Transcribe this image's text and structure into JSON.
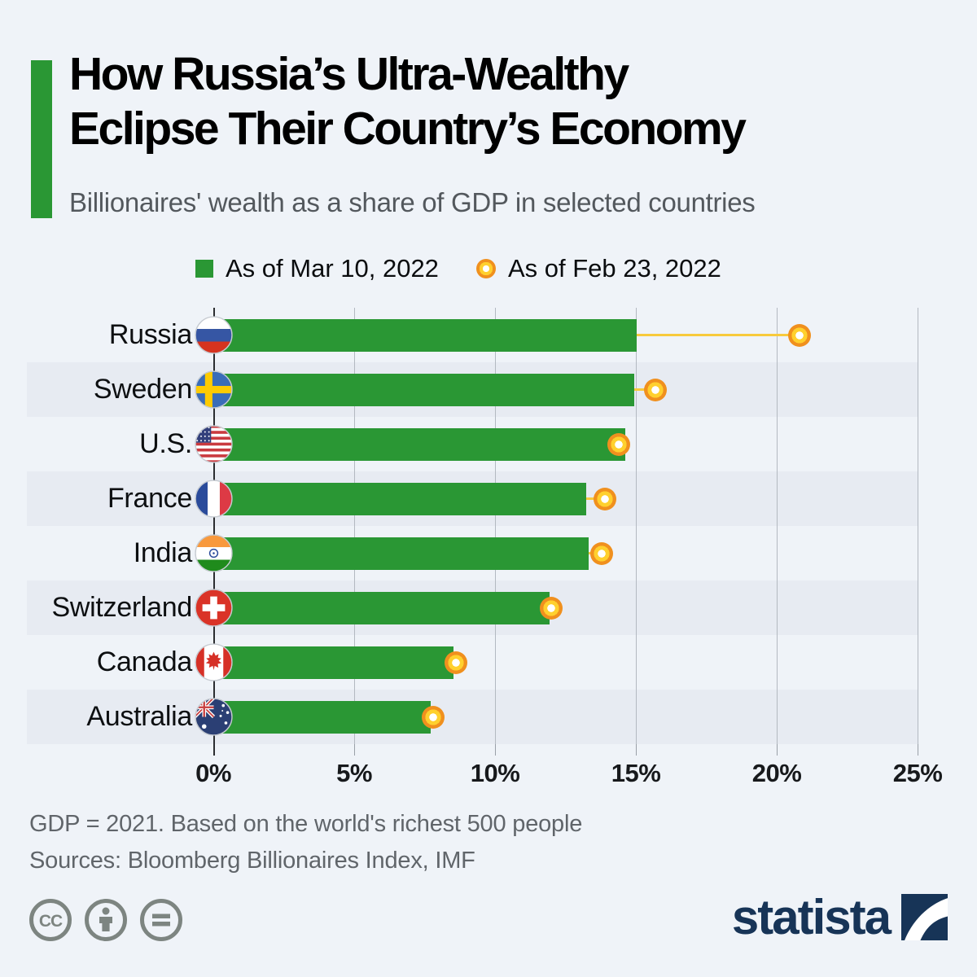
{
  "header": {
    "title_line1": "How Russia’s Ultra-Wealthy",
    "title_line2": "Eclipse Their Country’s Economy",
    "subtitle": "Billionaires' wealth as a share of GDP in selected countries"
  },
  "legend": {
    "items": [
      {
        "label": "As of Mar 10, 2022",
        "marker": "green-square",
        "color": "#2a9734"
      },
      {
        "label": "As of Feb 23, 2022",
        "marker": "yellow-ring",
        "color": "#ffd02e"
      }
    ]
  },
  "chart_data": {
    "type": "bar",
    "orientation": "horizontal",
    "title": "Billionaires' wealth as a share of GDP in selected countries",
    "categories": [
      "Russia",
      "Sweden",
      "U.S.",
      "France",
      "India",
      "Switzerland",
      "Canada",
      "Australia"
    ],
    "flag_icons": [
      "russia-flag-icon",
      "sweden-flag-icon",
      "us-flag-icon",
      "france-flag-icon",
      "india-flag-icon",
      "switzerland-flag-icon",
      "canada-flag-icon",
      "australia-flag-icon"
    ],
    "series": [
      {
        "name": "As of Mar 10, 2022",
        "style": "green-bar",
        "values": [
          15.0,
          14.9,
          14.6,
          13.2,
          13.3,
          11.9,
          8.5,
          7.7
        ]
      },
      {
        "name": "As of Feb 23, 2022",
        "style": "yellow-dot",
        "values": [
          20.8,
          15.7,
          14.4,
          13.9,
          13.8,
          12.0,
          8.6,
          7.8
        ]
      }
    ],
    "xlim": [
      0,
      25
    ],
    "x_ticks": [
      "0%",
      "5%",
      "10%",
      "15%",
      "20%",
      "25%"
    ],
    "unit": "%",
    "grid": true,
    "legend_position": "top",
    "row_banding": true
  },
  "footer": {
    "note1": "GDP = 2021. Based on the world's richest 500 people",
    "note2": "Sources: Bloomberg Billionaires Index, IMF",
    "brand": "statista",
    "license_icons": [
      "cc-icon",
      "attribution-icon",
      "no-derivatives-icon"
    ]
  },
  "colors": {
    "background": "#eff3f8",
    "row_band": "#e7ebf2",
    "bar_green": "#2a9734",
    "marker_orange": "#f0901e",
    "marker_yellow": "#ffd02e",
    "connector_yellow": "#f8ca3d",
    "brand_navy": "#173457",
    "subtitle_gray": "#53585d",
    "footnote_gray": "#60656a"
  }
}
